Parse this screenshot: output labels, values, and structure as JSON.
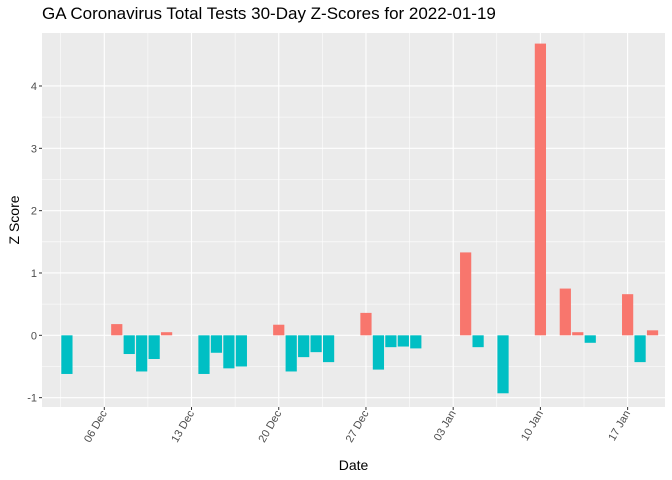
{
  "chart_data": {
    "type": "bar",
    "title": "GA Coronavirus Total Tests 30-Day Z-Scores for 2022-01-19",
    "xlabel": "Date",
    "ylabel": "Z Score",
    "x_axis_type": "date",
    "x_range": [
      "2021-12-01",
      "2022-01-20"
    ],
    "ylim": [
      -1.15,
      4.85
    ],
    "y_ticks": [
      -1,
      0,
      1,
      2,
      3,
      4
    ],
    "x_ticks": [
      {
        "date": "2021-12-06",
        "label": "06 Dec"
      },
      {
        "date": "2021-12-13",
        "label": "13 Dec"
      },
      {
        "date": "2021-12-20",
        "label": "20 Dec"
      },
      {
        "date": "2021-12-27",
        "label": "27 Dec"
      },
      {
        "date": "2022-01-03",
        "label": "03 Jan"
      },
      {
        "date": "2022-01-10",
        "label": "10 Jan"
      },
      {
        "date": "2022-01-17",
        "label": "17 Jan"
      }
    ],
    "grid": true,
    "legend": "none",
    "colors": {
      "positive": "#F8766D",
      "negative": "#00BFC4"
    },
    "bars": [
      {
        "date": "2021-12-03",
        "value": -0.62
      },
      {
        "date": "2021-12-07",
        "value": 0.18
      },
      {
        "date": "2021-12-08",
        "value": -0.3
      },
      {
        "date": "2021-12-09",
        "value": -0.58
      },
      {
        "date": "2021-12-10",
        "value": -0.38
      },
      {
        "date": "2021-12-11",
        "value": 0.05
      },
      {
        "date": "2021-12-14",
        "value": -0.62
      },
      {
        "date": "2021-12-15",
        "value": -0.28
      },
      {
        "date": "2021-12-16",
        "value": -0.53
      },
      {
        "date": "2021-12-17",
        "value": -0.5
      },
      {
        "date": "2021-12-20",
        "value": 0.17
      },
      {
        "date": "2021-12-21",
        "value": -0.58
      },
      {
        "date": "2021-12-22",
        "value": -0.35
      },
      {
        "date": "2021-12-23",
        "value": -0.27
      },
      {
        "date": "2021-12-24",
        "value": -0.43
      },
      {
        "date": "2021-12-27",
        "value": 0.36
      },
      {
        "date": "2021-12-28",
        "value": -0.55
      },
      {
        "date": "2021-12-29",
        "value": -0.19
      },
      {
        "date": "2021-12-30",
        "value": -0.18
      },
      {
        "date": "2021-12-31",
        "value": -0.21
      },
      {
        "date": "2022-01-04",
        "value": 1.33
      },
      {
        "date": "2022-01-05",
        "value": -0.19
      },
      {
        "date": "2022-01-07",
        "value": -0.93
      },
      {
        "date": "2022-01-10",
        "value": 4.68
      },
      {
        "date": "2022-01-12",
        "value": 0.75
      },
      {
        "date": "2022-01-13",
        "value": 0.05
      },
      {
        "date": "2022-01-14",
        "value": -0.12
      },
      {
        "date": "2022-01-17",
        "value": 0.66
      },
      {
        "date": "2022-01-18",
        "value": -0.43
      },
      {
        "date": "2022-01-19",
        "value": 0.08
      }
    ]
  }
}
